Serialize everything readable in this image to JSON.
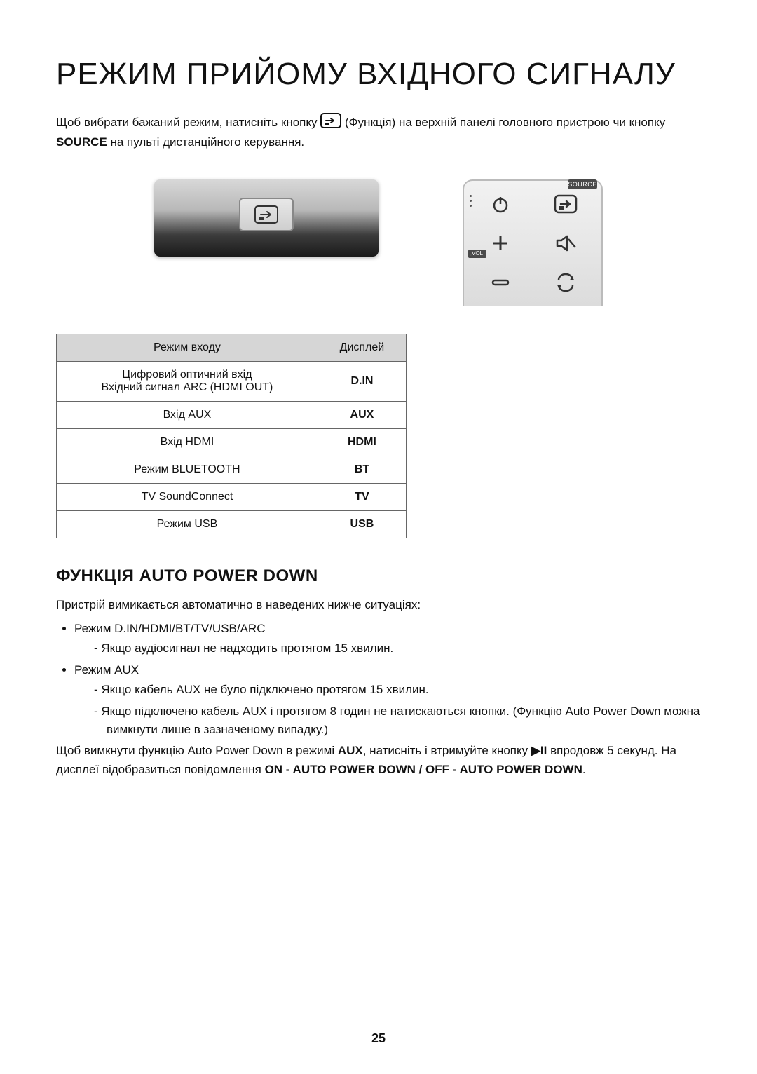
{
  "title": "РЕЖИМ ПРИЙОМУ ВХІДНОГО СИГНАЛУ",
  "intro": {
    "part1": "Щоб вибрати бажаний режим, натисніть кнопку ",
    "part2": " (Функція) на верхній панелі головного пристрою чи кнопку ",
    "bold": "SOURCE",
    "part3": " на пульті дистанційного керування."
  },
  "remote": {
    "source_label": "SOURCE",
    "vol_label": "VOL"
  },
  "table": {
    "headers": [
      "Режим входу",
      "Дисплей"
    ],
    "rows": [
      {
        "mode_lines": [
          "Цифровий оптичний вхід",
          "Вхідний сигнал ARC (HDMI OUT)"
        ],
        "display": "D.IN"
      },
      {
        "mode_lines": [
          "Вхід AUX"
        ],
        "display": "AUX"
      },
      {
        "mode_lines": [
          "Вхід HDMI"
        ],
        "display": "HDMI"
      },
      {
        "mode_lines": [
          "Режим BLUETOOTH"
        ],
        "display": "BT"
      },
      {
        "mode_lines": [
          "TV SoundConnect"
        ],
        "display": "TV"
      },
      {
        "mode_lines": [
          "Режим USB"
        ],
        "display": "USB"
      }
    ]
  },
  "section2": {
    "heading": "ФУНКЦІЯ AUTO POWER DOWN",
    "lead": "Пристрій вимикається автоматично в наведених нижче ситуаціях:",
    "b1": "Режим D.IN/HDMI/BT/TV/USB/ARC",
    "b1_d1": "Якщо аудіосигнал не надходить протягом 15 хвилин.",
    "b2": "Режим AUX",
    "b2_d1": "Якщо кабель AUX не було підключено протягом 15 хвилин.",
    "b2_d2": "Якщо підключено кабель AUX і протягом 8 годин не натискаються кнопки. (Функцію Auto Power Down можна вимкнути лише в зазначеному випадку.)",
    "tail_1": "Щоб вимкнути функцію Auto Power Down в режимі ",
    "tail_aux": "AUX",
    "tail_2": ", натисніть і втримуйте кнопку ",
    "tail_btn": "▶II",
    "tail_3": " впродовж 5 секунд. На дисплеї відобразиться повідомлення ",
    "tail_msg": "ON - AUTO POWER DOWN / OFF - AUTO POWER DOWN",
    "tail_4": "."
  },
  "page_number": "25",
  "colors": {
    "text": "#111111",
    "table_header_bg": "#d6d6d6",
    "border": "#666666"
  }
}
